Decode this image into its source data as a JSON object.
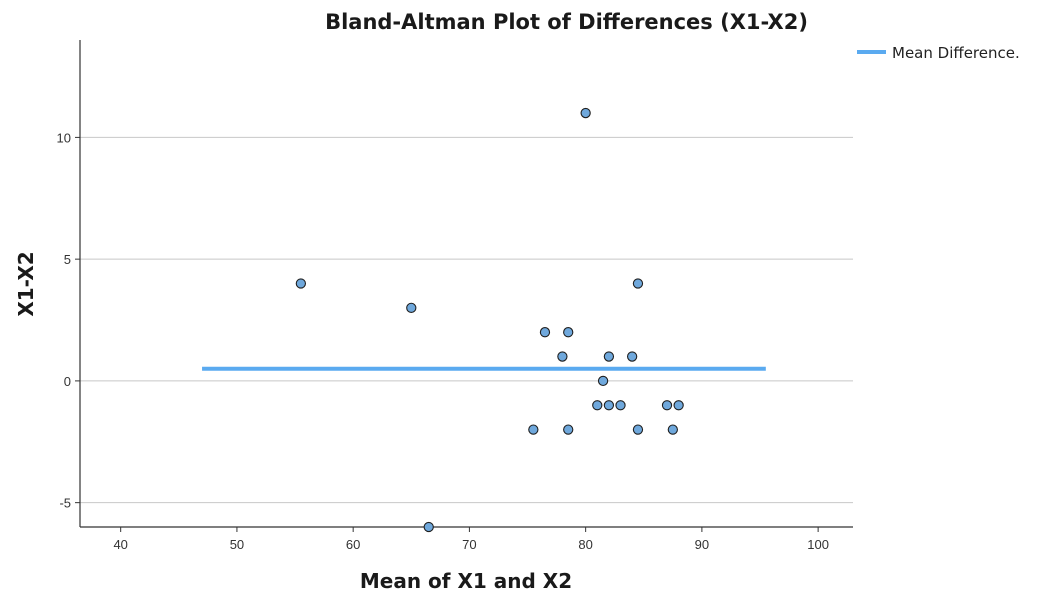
{
  "chart_data": {
    "type": "scatter",
    "title": "Bland-Altman Plot of Differences (X1-X2)",
    "xlabel": "Mean of X1 and X2",
    "ylabel": "X1-X2",
    "xlim": [
      36.5,
      103
    ],
    "ylim": [
      -6,
      14
    ],
    "x_ticks": [
      40,
      50,
      60,
      70,
      80,
      90,
      100
    ],
    "y_ticks": [
      -5,
      0,
      5,
      10
    ],
    "grid": "horizontal",
    "legend_position": "top-right",
    "point_color": "#6fa8dc",
    "line_color": "#5aaaf0",
    "points": [
      {
        "x": 55.5,
        "y": 4
      },
      {
        "x": 65,
        "y": 3
      },
      {
        "x": 66.5,
        "y": -6
      },
      {
        "x": 75.5,
        "y": -2
      },
      {
        "x": 76.5,
        "y": 2
      },
      {
        "x": 78,
        "y": 1
      },
      {
        "x": 78.5,
        "y": 2
      },
      {
        "x": 78.5,
        "y": -2
      },
      {
        "x": 80,
        "y": 11
      },
      {
        "x": 81,
        "y": -1
      },
      {
        "x": 81.5,
        "y": 0
      },
      {
        "x": 82,
        "y": 1
      },
      {
        "x": 82,
        "y": -1
      },
      {
        "x": 83,
        "y": -1
      },
      {
        "x": 84,
        "y": 1
      },
      {
        "x": 84.5,
        "y": 4
      },
      {
        "x": 84.5,
        "y": -2
      },
      {
        "x": 87,
        "y": -1
      },
      {
        "x": 87.5,
        "y": -2
      },
      {
        "x": 88,
        "y": -1
      }
    ],
    "reference_lines": [
      {
        "name": "Mean Difference.",
        "y": 0.5,
        "x_start": 47,
        "x_end": 95.5
      }
    ]
  }
}
